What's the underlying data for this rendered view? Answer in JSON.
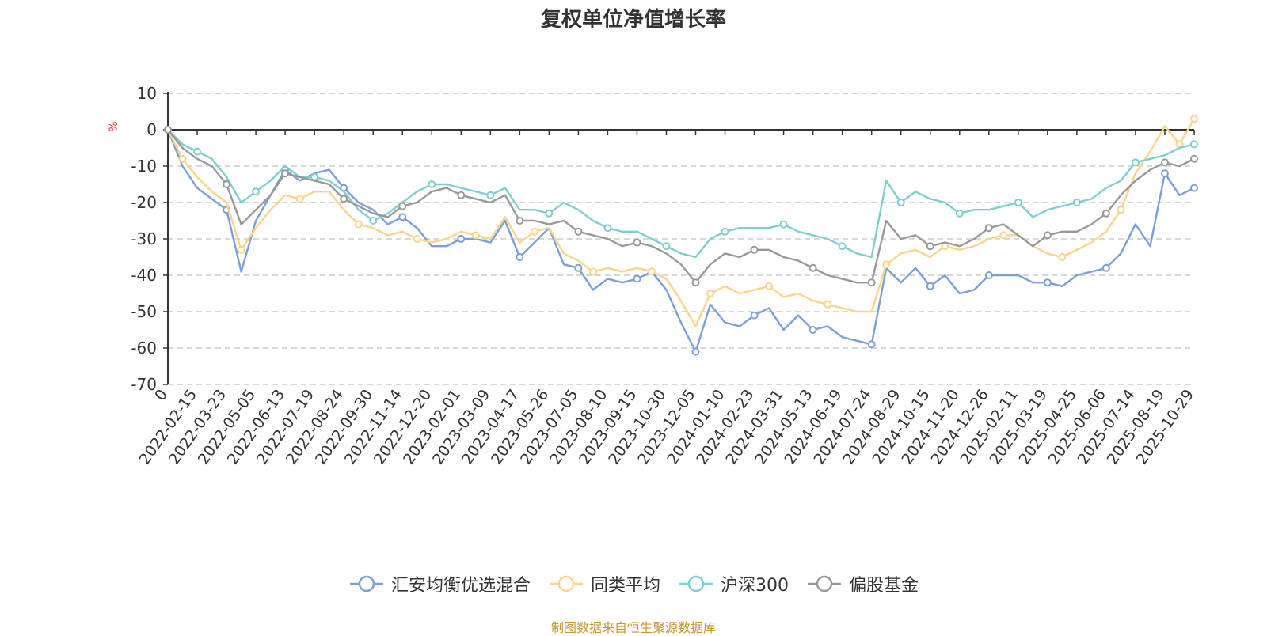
{
  "chart_data": {
    "type": "line",
    "title": "复权单位净值增长率",
    "ylabel": "%",
    "ylim": [
      -70,
      10
    ],
    "yticks": [
      10,
      0,
      -10,
      -20,
      -30,
      -40,
      -50,
      -60,
      -70
    ],
    "grid": true,
    "legend_position": "bottom",
    "x_tick_labels": [
      "0",
      "2022-02-15",
      "2022-03-23",
      "2022-05-05",
      "2022-06-13",
      "2022-07-19",
      "2022-08-24",
      "2022-09-30",
      "2022-11-14",
      "2022-12-20",
      "2023-02-01",
      "2023-03-09",
      "2023-04-17",
      "2023-05-26",
      "2023-07-05",
      "2023-08-10",
      "2023-09-15",
      "2023-10-30",
      "2023-12-05",
      "2024-01-10",
      "2024-02-23",
      "2024-03-31",
      "2024-05-13",
      "2024-06-19",
      "2024-07-24",
      "2024-08-29",
      "2024-10-15",
      "2024-11-20",
      "2024-12-26",
      "2025-02-11",
      "2025-03-19",
      "2025-04-25",
      "2025-06-06",
      "2025-07-14",
      "2025-08-19",
      "2025-10-29"
    ],
    "series": [
      {
        "name": "汇安均衡优选混合",
        "color": "#7b9fd8",
        "values": [
          0,
          -10,
          -16,
          -19,
          -22,
          -39,
          -25,
          -18,
          -11,
          -14,
          -12,
          -11,
          -16,
          -20,
          -22,
          -26,
          -24,
          -27,
          -32,
          -32,
          -30,
          -30,
          -31,
          -25,
          -35,
          -31,
          -27,
          -37,
          -38,
          -44,
          -41,
          -42,
          -41,
          -39,
          -44,
          -53,
          -61,
          -48,
          -53,
          -54,
          -51,
          -49,
          -55,
          -51,
          -55,
          -54,
          -57,
          -58,
          -59,
          -38,
          -42,
          -38,
          -43,
          -40,
          -45,
          -44,
          -40,
          -40,
          -40,
          -42,
          -42,
          -43,
          -40,
          -39,
          -38,
          -34,
          -26,
          -32,
          -12,
          -18,
          -16
        ]
      },
      {
        "name": "同类平均",
        "color": "#f9d48b",
        "values": [
          0,
          -8,
          -13,
          -17,
          -20,
          -33,
          -27,
          -22,
          -18,
          -19,
          -17,
          -17,
          -22,
          -26,
          -27,
          -29,
          -28,
          -30,
          -31,
          -30,
          -28,
          -29,
          -30,
          -24,
          -31,
          -28,
          -27,
          -34,
          -36,
          -39,
          -38,
          -39,
          -38,
          -39,
          -41,
          -47,
          -54,
          -45,
          -43,
          -45,
          -44,
          -43,
          -46,
          -45,
          -47,
          -48,
          -49,
          -50,
          -50,
          -37,
          -34,
          -33,
          -35,
          -32,
          -33,
          -32,
          -30,
          -29,
          -29,
          -32,
          -34,
          -35,
          -33,
          -31,
          -28,
          -22,
          -12,
          -6,
          1,
          -4,
          3
        ]
      },
      {
        "name": "沪深300",
        "color": "#7ecfcf",
        "values": [
          0,
          -4,
          -6,
          -8,
          -13,
          -20,
          -17,
          -14,
          -10,
          -13,
          -13,
          -14,
          -17,
          -22,
          -25,
          -23,
          -20,
          -17,
          -15,
          -15,
          -16,
          -17,
          -18,
          -16,
          -22,
          -22,
          -23,
          -20,
          -22,
          -25,
          -27,
          -28,
          -28,
          -30,
          -32,
          -34,
          -35,
          -30,
          -28,
          -27,
          -27,
          -27,
          -26,
          -28,
          -29,
          -30,
          -32,
          -34,
          -35,
          -14,
          -20,
          -17,
          -19,
          -20,
          -23,
          -22,
          -22,
          -21,
          -20,
          -24,
          -22,
          -21,
          -20,
          -19,
          -16,
          -14,
          -9,
          -8,
          -7,
          -5,
          -4
        ]
      },
      {
        "name": "偏股基金",
        "color": "#999999",
        "values": [
          0,
          -5,
          -8,
          -10,
          -15,
          -26,
          -22,
          -18,
          -12,
          -13,
          -14,
          -15,
          -19,
          -21,
          -23,
          -24,
          -21,
          -20,
          -17,
          -16,
          -18,
          -19,
          -20,
          -18,
          -25,
          -25,
          -26,
          -25,
          -28,
          -29,
          -30,
          -32,
          -31,
          -32,
          -34,
          -37,
          -42,
          -37,
          -34,
          -35,
          -33,
          -33,
          -35,
          -36,
          -38,
          -40,
          -41,
          -42,
          -42,
          -25,
          -30,
          -29,
          -32,
          -31,
          -32,
          -30,
          -27,
          -26,
          -29,
          -32,
          -29,
          -28,
          -28,
          -26,
          -23,
          -18,
          -14,
          -11,
          -9,
          -10,
          -8
        ]
      }
    ]
  },
  "footer": {
    "source": "制图数据来自恒生聚源数据库"
  }
}
